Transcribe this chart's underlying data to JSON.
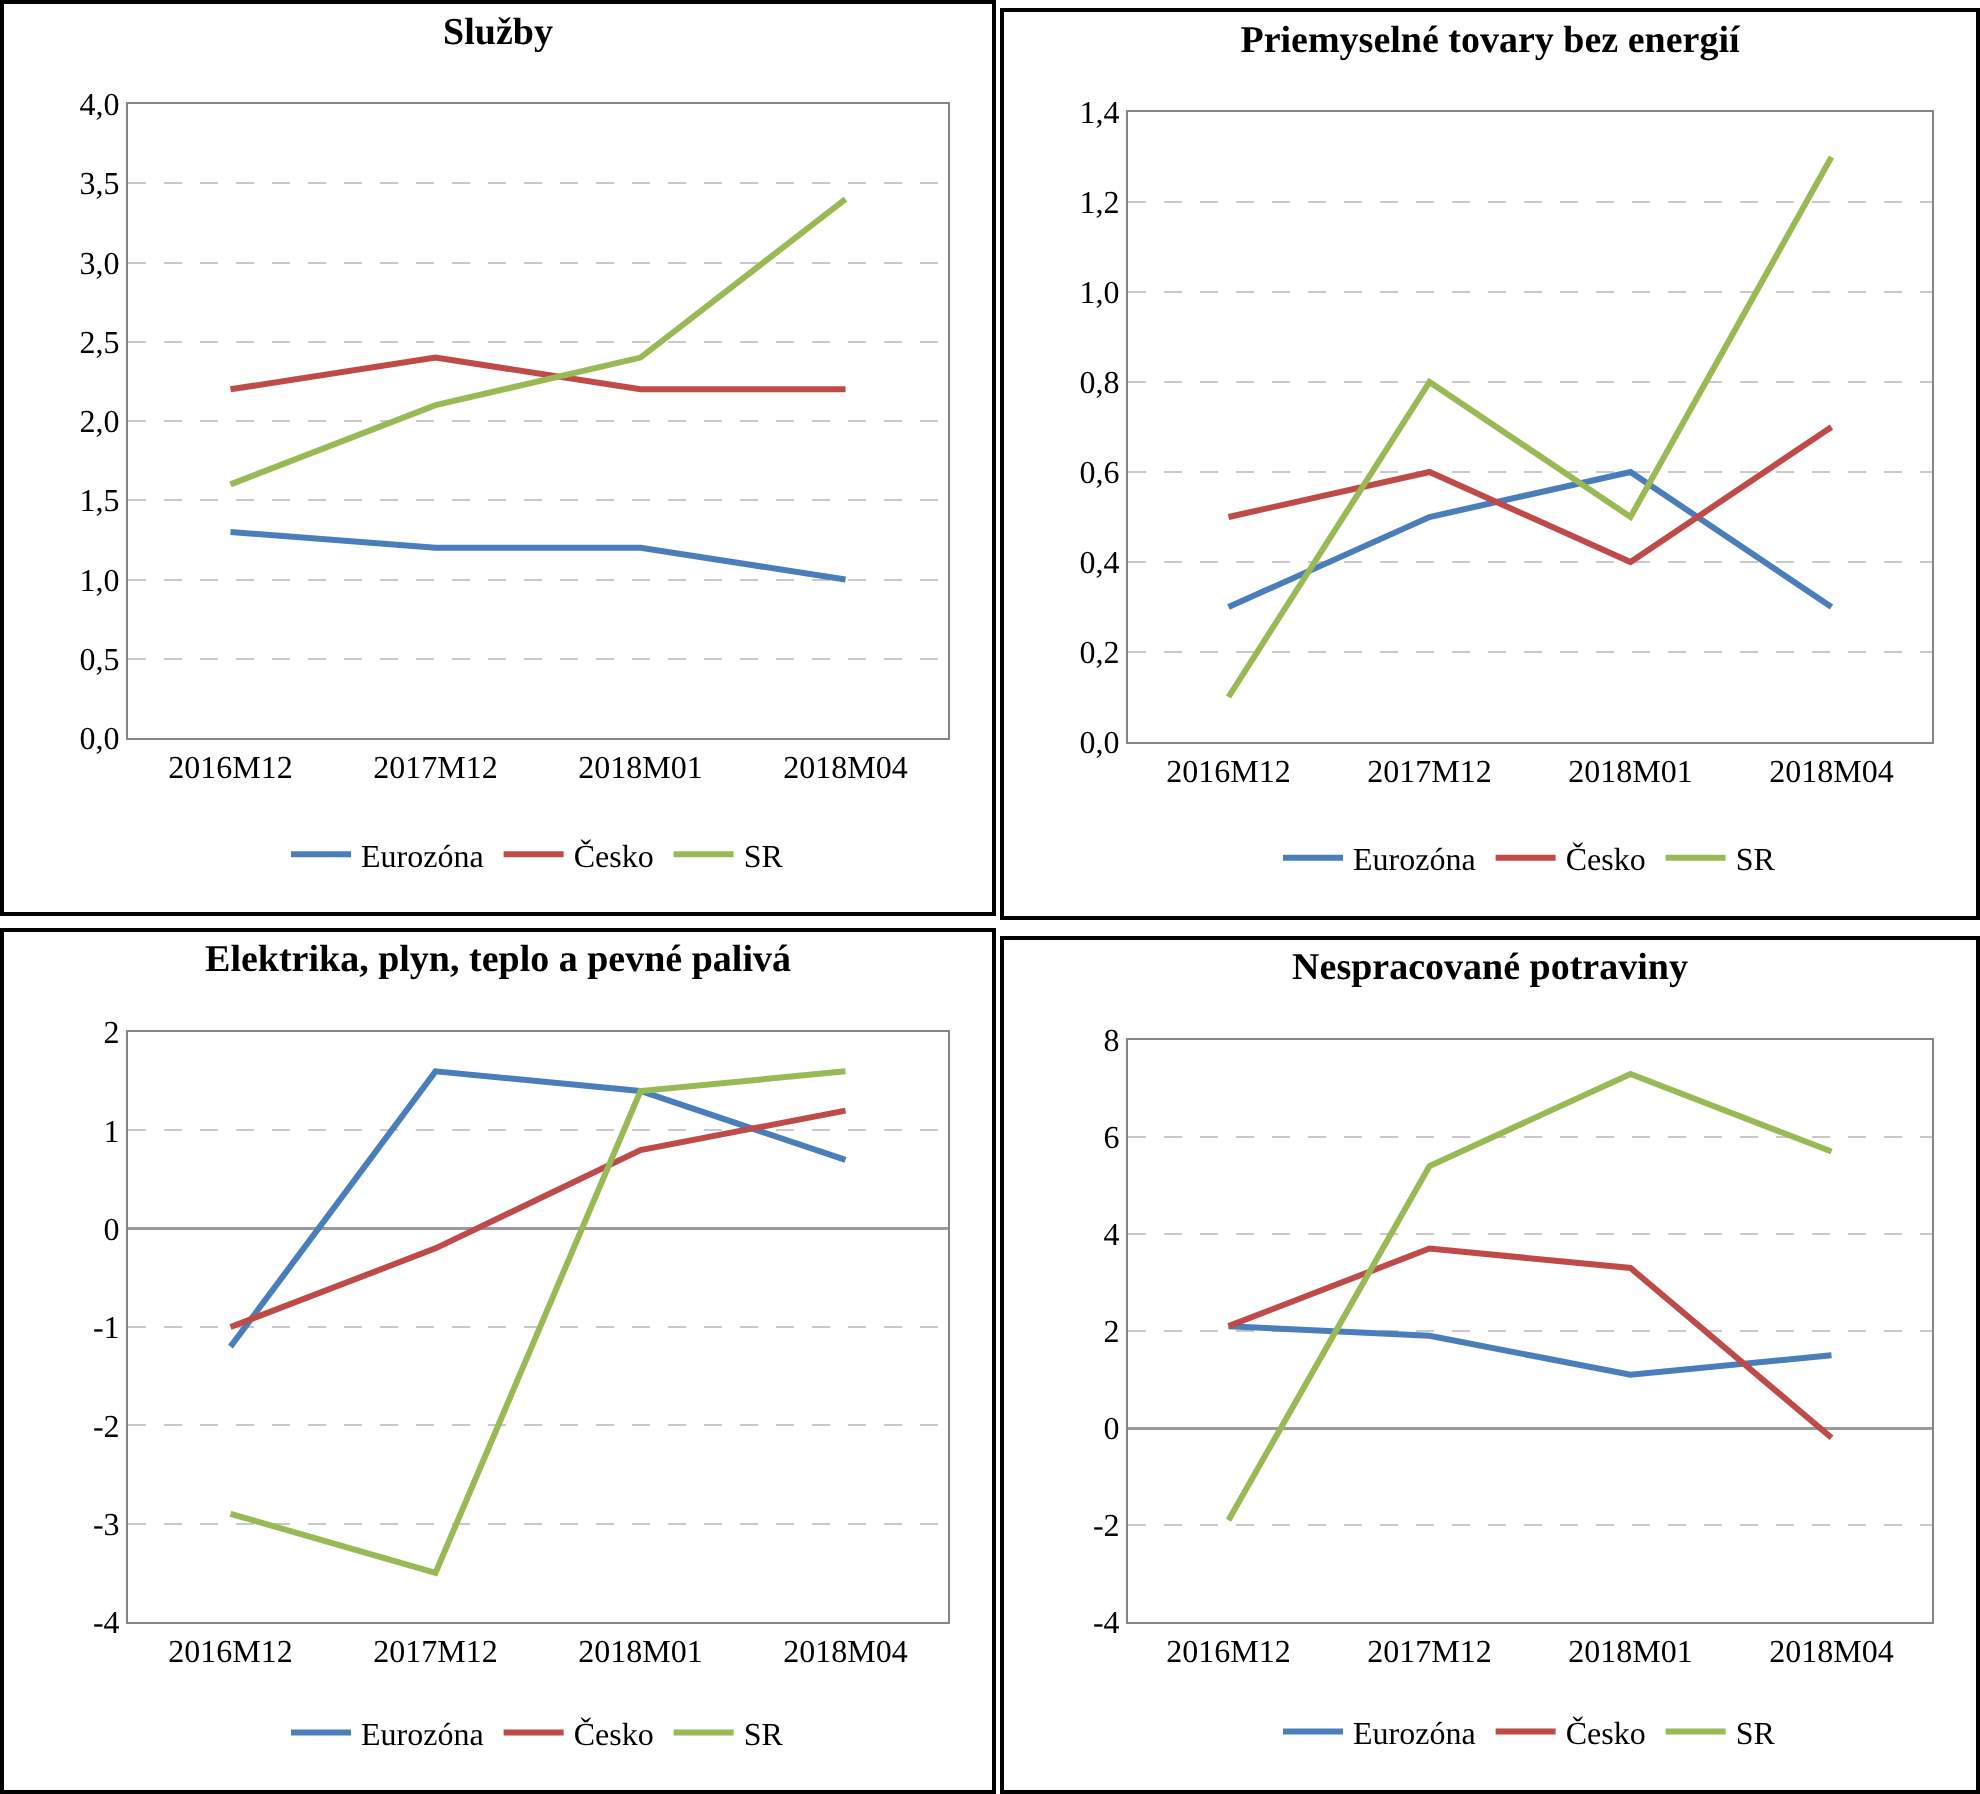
{
  "chart_data": [
    {
      "type": "line",
      "title": "Služby",
      "categories": [
        "2016M12",
        "2017M12",
        "2018M01",
        "2018M04"
      ],
      "series": [
        {
          "name": "Eurozóna",
          "color": "#4a7ebb",
          "values": [
            1.3,
            1.2,
            1.2,
            1.0
          ]
        },
        {
          "name": "Česko",
          "color": "#be4b48",
          "values": [
            2.2,
            2.4,
            2.2,
            2.2
          ]
        },
        {
          "name": "SR",
          "color": "#98b954",
          "values": [
            1.6,
            2.1,
            2.4,
            3.4
          ]
        }
      ],
      "ylim": [
        0,
        4
      ],
      "yticks": [
        {
          "value": 0,
          "label": "0,0"
        },
        {
          "value": 0.5,
          "label": "0,5"
        },
        {
          "value": 1,
          "label": "1,0"
        },
        {
          "value": 1.5,
          "label": "1,5"
        },
        {
          "value": 2,
          "label": "2,0"
        },
        {
          "value": 2.5,
          "label": "2,5"
        },
        {
          "value": 3,
          "label": "3,0"
        },
        {
          "value": 3.5,
          "label": "3,5"
        },
        {
          "value": 4,
          "label": "4,0"
        }
      ],
      "grid": "y",
      "legend": "bottom",
      "line_style": "solid"
    },
    {
      "type": "line",
      "title": "Priemyselné tovary bez energií",
      "categories": [
        "2016M12",
        "2017M12",
        "2018M01",
        "2018M04"
      ],
      "series": [
        {
          "name": "Eurozóna",
          "color": "#4a7ebb",
          "values": [
            0.3,
            0.5,
            0.6,
            0.3
          ]
        },
        {
          "name": "Česko",
          "color": "#be4b48",
          "values": [
            0.5,
            0.6,
            0.4,
            0.7
          ]
        },
        {
          "name": "SR",
          "color": "#98b954",
          "values": [
            0.1,
            0.8,
            0.5,
            1.3
          ]
        }
      ],
      "ylim": [
        0,
        1.4
      ],
      "yticks": [
        {
          "value": 0,
          "label": "0,0"
        },
        {
          "value": 0.2,
          "label": "0,2"
        },
        {
          "value": 0.4,
          "label": "0,4"
        },
        {
          "value": 0.6,
          "label": "0,6"
        },
        {
          "value": 0.8,
          "label": "0,8"
        },
        {
          "value": 1,
          "label": "1,0"
        },
        {
          "value": 1.2,
          "label": "1,2"
        },
        {
          "value": 1.4,
          "label": "1,4"
        }
      ],
      "grid": "y",
      "legend": "bottom",
      "line_style": "solid"
    },
    {
      "type": "line",
      "title": "Elektrika, plyn, teplo a pevné palivá",
      "categories": [
        "2016M12",
        "2017M12",
        "2018M01",
        "2018M04"
      ],
      "series": [
        {
          "name": "Eurozóna",
          "color": "#4a7ebb",
          "values": [
            -1.2,
            1.6,
            1.4,
            0.7
          ]
        },
        {
          "name": "Česko",
          "color": "#be4b48",
          "values": [
            -1.0,
            -0.2,
            0.8,
            1.2
          ]
        },
        {
          "name": "SR",
          "color": "#98b954",
          "values": [
            -2.9,
            -3.5,
            1.4,
            1.6
          ]
        }
      ],
      "ylim": [
        -4,
        2
      ],
      "yticks": [
        -4,
        -3,
        -2,
        -1,
        0,
        1,
        2
      ],
      "grid": "y",
      "legend": "bottom",
      "line_style": "solid"
    },
    {
      "type": "line",
      "title": "Nespracované potraviny",
      "categories": [
        "2016M12",
        "2017M12",
        "2018M01",
        "2018M04"
      ],
      "series": [
        {
          "name": "Eurozóna",
          "color": "#4a7ebb",
          "values": [
            2.1,
            1.9,
            1.1,
            1.5
          ]
        },
        {
          "name": "Česko",
          "color": "#be4b48",
          "values": [
            2.1,
            3.7,
            3.3,
            -0.2
          ]
        },
        {
          "name": "SR",
          "color": "#98b954",
          "values": [
            -1.9,
            5.4,
            7.3,
            5.7
          ]
        }
      ],
      "ylim": [
        -4,
        8
      ],
      "yticks": [
        -4,
        -2,
        0,
        2,
        4,
        6,
        8
      ],
      "grid": "y",
      "legend": "bottom",
      "line_style": "solid"
    }
  ]
}
